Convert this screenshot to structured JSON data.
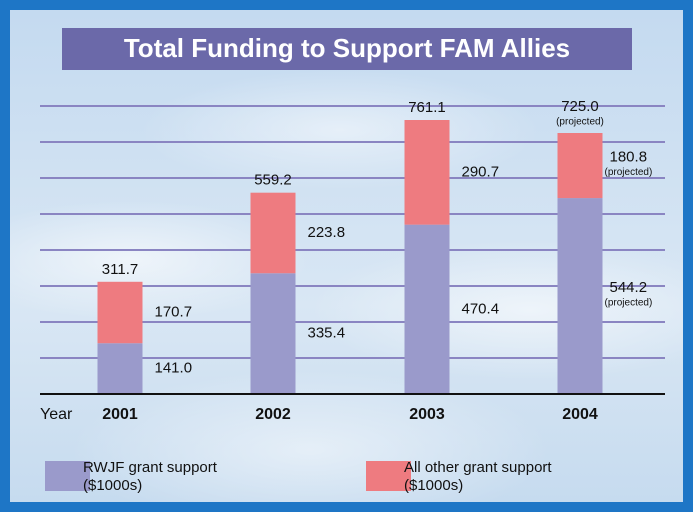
{
  "chart_data": {
    "type": "stacked_bar",
    "title": "Total Funding to Support FAM Allies",
    "x_label": "Year",
    "categories": [
      "2001",
      "2002",
      "2003",
      "2004"
    ],
    "series": [
      {
        "name": "RWJF grant support ($1000s)",
        "color": "#9a9acb",
        "values": [
          141.0,
          335.4,
          470.4,
          544.2
        ],
        "value_labels": [
          "141.0",
          "335.4",
          "470.4",
          "544.2"
        ],
        "notes": [
          null,
          null,
          null,
          "(projected)"
        ]
      },
      {
        "name": "All other grant support ($1000s)",
        "color": "#ee7b80",
        "values": [
          170.7,
          223.8,
          290.7,
          180.8
        ],
        "value_labels": [
          "170.7",
          "223.8",
          "290.7",
          "180.8"
        ],
        "notes": [
          null,
          null,
          null,
          "(projected)"
        ]
      }
    ],
    "totals": [
      311.7,
      559.2,
      761.1,
      725.0
    ],
    "total_labels": [
      "311.7",
      "559.2",
      "761.1",
      "725.0"
    ],
    "total_notes": [
      null,
      null,
      null,
      "(projected)"
    ],
    "ylim": [
      0,
      800
    ],
    "yticks": [
      100,
      200,
      300,
      400,
      500,
      600,
      700,
      800
    ],
    "grid": true
  }
}
